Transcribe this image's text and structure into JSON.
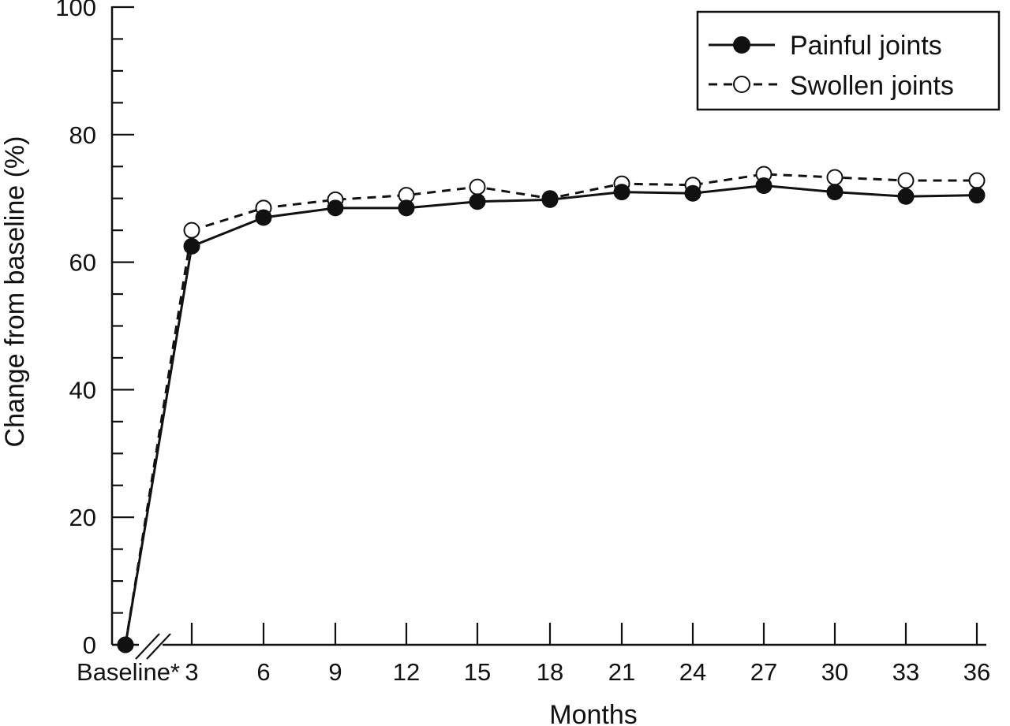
{
  "chart_data": {
    "type": "line",
    "title": "",
    "xlabel": "Months",
    "ylabel": "Change from baseline (%)",
    "categories": [
      "Baseline*",
      "3",
      "6",
      "9",
      "12",
      "15",
      "18",
      "21",
      "24",
      "27",
      "30",
      "33",
      "36"
    ],
    "ylim": [
      0,
      100
    ],
    "yticks": [
      0,
      20,
      40,
      60,
      80,
      100
    ],
    "y_minor_step": 5,
    "grid": false,
    "axis_break": "between Baseline* and 3",
    "legend": {
      "position": "top-right",
      "boxed": true
    },
    "series": [
      {
        "name": "Painful joints",
        "marker": "filled-circle",
        "line": "solid",
        "color": "#111111",
        "values": [
          0,
          62.5,
          67,
          68.5,
          68.5,
          69.5,
          69.8,
          71,
          70.8,
          72,
          71,
          70.3,
          70.5
        ]
      },
      {
        "name": "Swollen joints",
        "marker": "open-circle",
        "line": "dashed",
        "color": "#111111",
        "values": [
          0,
          65,
          68.5,
          69.8,
          70.5,
          71.8,
          70,
          72.3,
          72.1,
          73.8,
          73.3,
          72.8,
          72.8
        ]
      }
    ]
  }
}
